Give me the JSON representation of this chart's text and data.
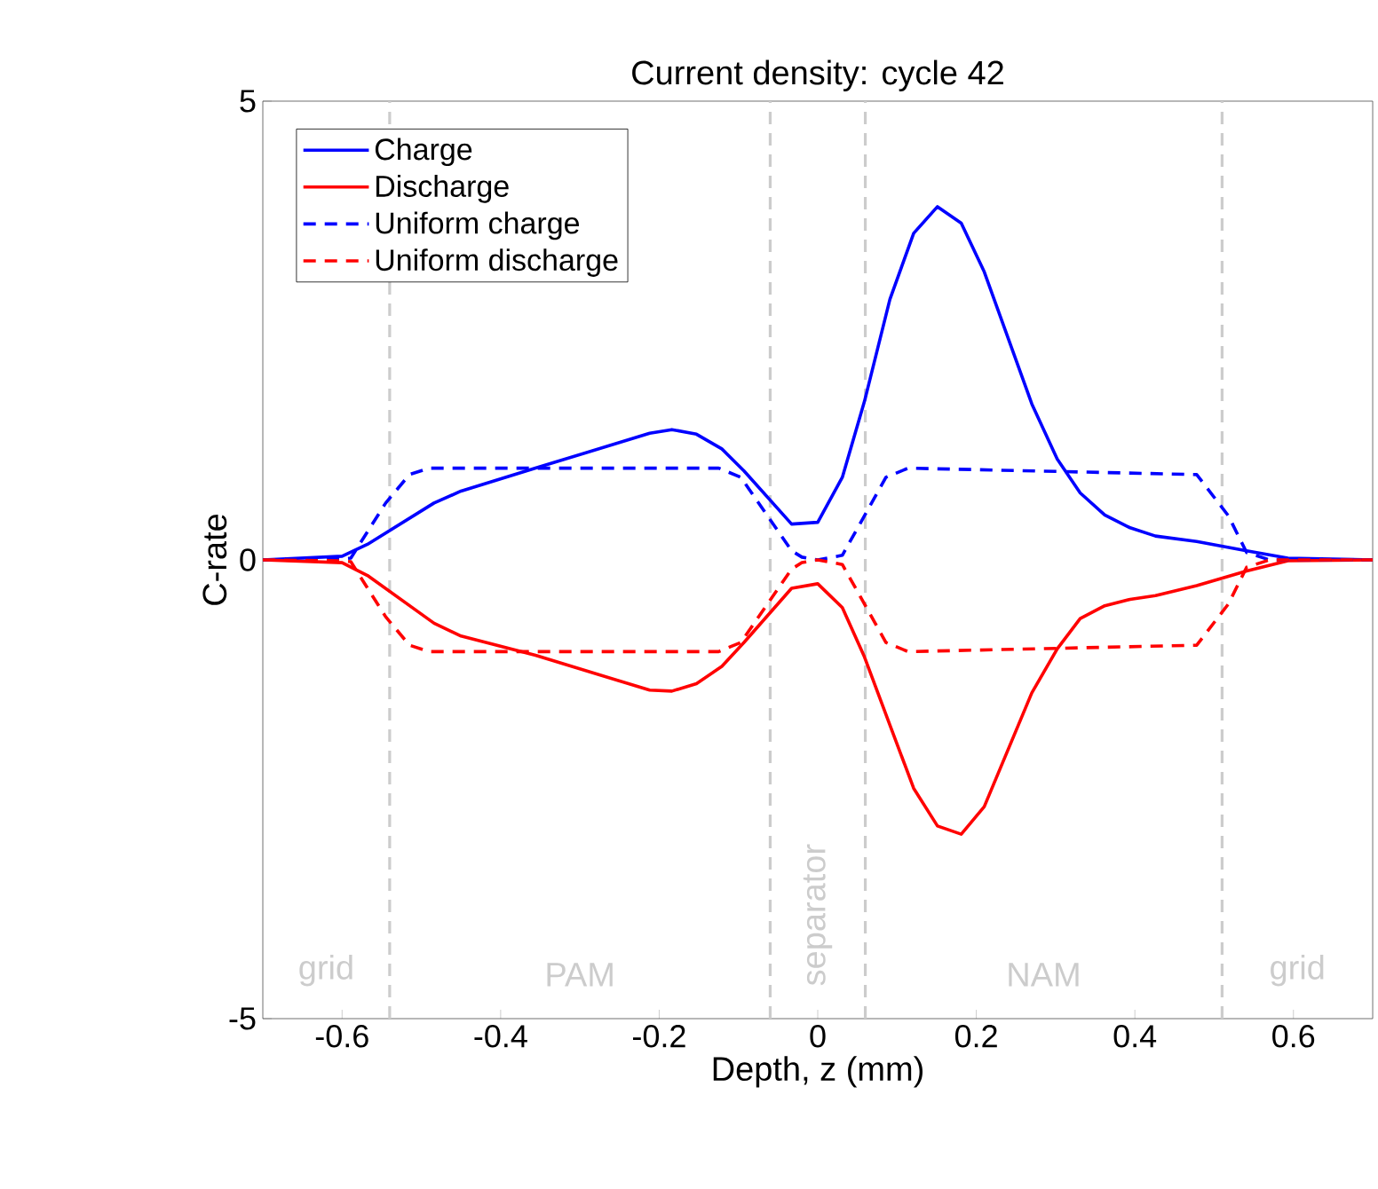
{
  "chart_data": {
    "type": "line",
    "title": "Current density: cycle 42",
    "xlabel": "Depth, z (mm)",
    "ylabel": "C-rate",
    "xlim": [
      -0.7,
      0.7
    ],
    "ylim": [
      -5,
      5
    ],
    "xticks": [
      -0.6,
      -0.4,
      -0.2,
      0,
      0.2,
      0.4,
      0.6
    ],
    "yticks": [
      -5,
      0,
      5
    ],
    "grid": false,
    "legend": "top left",
    "series": [
      {
        "name": "Charge",
        "color": "#0000ff",
        "line_style": "solid",
        "x": [
          -0.7,
          -0.6,
          -0.568,
          -0.484,
          -0.45,
          -0.356,
          -0.212,
          -0.184,
          -0.153,
          -0.121,
          -0.093,
          -0.033,
          0.0,
          0.031,
          0.059,
          0.091,
          0.121,
          0.151,
          0.181,
          0.21,
          0.27,
          0.302,
          0.331,
          0.362,
          0.394,
          0.426,
          0.478,
          0.541,
          0.593,
          0.7
        ],
        "values": [
          0,
          0.04,
          0.17,
          0.62,
          0.75,
          1.0,
          1.38,
          1.42,
          1.37,
          1.21,
          0.97,
          0.39,
          0.41,
          0.9,
          1.73,
          2.84,
          3.56,
          3.85,
          3.67,
          3.14,
          1.7,
          1.1,
          0.73,
          0.49,
          0.35,
          0.26,
          0.2,
          0.1,
          0.02,
          0
        ]
      },
      {
        "name": "Discharge",
        "color": "#ff0000",
        "line_style": "solid",
        "x": [
          -0.7,
          -0.6,
          -0.568,
          -0.484,
          -0.45,
          -0.356,
          -0.212,
          -0.184,
          -0.153,
          -0.121,
          -0.093,
          -0.033,
          0.0,
          0.031,
          0.059,
          0.091,
          0.121,
          0.151,
          0.181,
          0.21,
          0.27,
          0.302,
          0.331,
          0.362,
          0.394,
          0.426,
          0.478,
          0.541,
          0.593,
          0.7
        ],
        "values": [
          0,
          -0.03,
          -0.17,
          -0.69,
          -0.83,
          -1.04,
          -1.42,
          -1.43,
          -1.35,
          -1.16,
          -0.9,
          -0.31,
          -0.26,
          -0.52,
          -1.06,
          -1.8,
          -2.49,
          -2.9,
          -2.99,
          -2.69,
          -1.45,
          -0.97,
          -0.64,
          -0.5,
          -0.43,
          -0.39,
          -0.28,
          -0.12,
          -0.01,
          0
        ]
      },
      {
        "name": "Uniform charge",
        "color": "#0000ff",
        "line_style": "dashed",
        "x": [
          -0.7,
          -0.6,
          -0.589,
          -0.545,
          -0.515,
          -0.49,
          -0.125,
          -0.097,
          -0.033,
          -0.02,
          0.0,
          0.031,
          0.086,
          0.114,
          0.478,
          0.518,
          0.541,
          0.57,
          0.7
        ],
        "values": [
          0,
          0.01,
          0.02,
          0.62,
          0.93,
          1.0,
          1.0,
          0.9,
          0.1,
          0.03,
          0,
          0.05,
          0.9,
          1.0,
          0.93,
          0.48,
          0.08,
          0,
          0
        ]
      },
      {
        "name": "Uniform discharge",
        "color": "#ff0000",
        "line_style": "dashed",
        "x": [
          -0.7,
          -0.6,
          -0.589,
          -0.545,
          -0.515,
          -0.49,
          -0.125,
          -0.097,
          -0.033,
          -0.02,
          0.0,
          0.031,
          0.086,
          0.114,
          0.478,
          0.518,
          0.541,
          0.57,
          0.7
        ],
        "values": [
          0,
          -0.01,
          -0.02,
          -0.62,
          -0.93,
          -1.0,
          -1.0,
          -0.9,
          -0.1,
          -0.03,
          0,
          -0.05,
          -0.9,
          -1.0,
          -0.93,
          -0.48,
          -0.08,
          0,
          0
        ]
      }
    ],
    "ref_lines": [
      {
        "axis": "x",
        "value": -0.54,
        "color": "#cccccc",
        "line_style": "dashed"
      },
      {
        "axis": "x",
        "value": -0.06,
        "color": "#cccccc",
        "line_style": "dashed"
      },
      {
        "axis": "x",
        "value": 0.06,
        "color": "#cccccc",
        "line_style": "dashed"
      },
      {
        "axis": "x",
        "value": 0.51,
        "color": "#cccccc",
        "line_style": "dashed"
      }
    ],
    "annotations": [
      "grid",
      "PAM",
      "separator",
      "NAM",
      "grid"
    ]
  }
}
